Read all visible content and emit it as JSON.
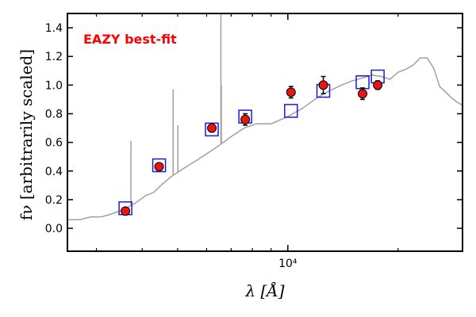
{
  "chart_data": {
    "type": "scatter",
    "x_scale": "log",
    "xlim": [
      2500,
      30000
    ],
    "ylim": [
      -0.16,
      1.5
    ],
    "xlabel": "λ [Å]",
    "ylabel": "fν [arbitrarily scaled]",
    "annotation": "EAZY best-fit",
    "annotation_color": "#ff0000",
    "x_tick_labels": [
      {
        "value": 10000,
        "label": "10⁴"
      }
    ],
    "y_ticks": [
      0.0,
      0.2,
      0.4,
      0.6,
      0.8,
      1.0,
      1.2,
      1.4
    ],
    "y_tick_labels": [
      "0.0",
      "0.2",
      "0.4",
      "0.6",
      "0.8",
      "1.0",
      "1.2",
      "1.4"
    ],
    "colors": {
      "observed": "#e8160f",
      "model_photometry": "#1a1adf",
      "template": "#a0a0a0"
    },
    "template": {
      "points": [
        [
          2500,
          0.06
        ],
        [
          2700,
          0.06
        ],
        [
          2900,
          0.08
        ],
        [
          3100,
          0.08
        ],
        [
          3300,
          0.1
        ],
        [
          3550,
          0.13
        ],
        [
          3800,
          0.17
        ],
        [
          4100,
          0.23
        ],
        [
          4300,
          0.25
        ],
        [
          4500,
          0.3
        ],
        [
          4800,
          0.36
        ],
        [
          5200,
          0.42
        ],
        [
          5600,
          0.47
        ],
        [
          6000,
          0.52
        ],
        [
          6500,
          0.58
        ],
        [
          7000,
          0.64
        ],
        [
          7600,
          0.7
        ],
        [
          8200,
          0.73
        ],
        [
          9000,
          0.73
        ],
        [
          10000,
          0.78
        ],
        [
          11000,
          0.84
        ],
        [
          12000,
          0.91
        ],
        [
          13000,
          0.96
        ],
        [
          14000,
          1.0
        ],
        [
          15000,
          1.03
        ],
        [
          16000,
          1.05
        ],
        [
          17000,
          1.07
        ],
        [
          18000,
          1.06
        ],
        [
          19000,
          1.04
        ],
        [
          20000,
          1.09
        ],
        [
          21000,
          1.11
        ],
        [
          22000,
          1.14
        ],
        [
          23000,
          1.19
        ],
        [
          24000,
          1.19
        ],
        [
          25000,
          1.12
        ],
        [
          26000,
          0.99
        ],
        [
          27000,
          0.95
        ],
        [
          28000,
          0.91
        ],
        [
          29000,
          0.88
        ],
        [
          30000,
          0.86
        ]
      ],
      "emission_lines": [
        {
          "x": 3727,
          "peak": 0.61
        },
        {
          "x": 4861,
          "peak": 0.97
        },
        {
          "x": 5007,
          "peak": 0.72
        },
        {
          "x": 6563,
          "peak": 1.5
        },
        {
          "x": 6583,
          "peak": 1.0
        }
      ]
    },
    "observed": [
      {
        "x": 3600,
        "y": 0.12,
        "err": 0.02
      },
      {
        "x": 4450,
        "y": 0.43,
        "err": 0.02
      },
      {
        "x": 6200,
        "y": 0.7,
        "err": 0.02
      },
      {
        "x": 7650,
        "y": 0.76,
        "err": 0.04
      },
      {
        "x": 10200,
        "y": 0.95,
        "err": 0.04
      },
      {
        "x": 12500,
        "y": 1.0,
        "err": 0.06
      },
      {
        "x": 16000,
        "y": 0.94,
        "err": 0.04
      },
      {
        "x": 17600,
        "y": 1.0,
        "err": 0.03
      }
    ],
    "model_photometry": [
      {
        "x": 3600,
        "y": 0.14
      },
      {
        "x": 4450,
        "y": 0.44
      },
      {
        "x": 6200,
        "y": 0.69
      },
      {
        "x": 7650,
        "y": 0.78
      },
      {
        "x": 10200,
        "y": 0.82
      },
      {
        "x": 12500,
        "y": 0.96
      },
      {
        "x": 16000,
        "y": 1.02
      },
      {
        "x": 17600,
        "y": 1.06
      }
    ]
  }
}
